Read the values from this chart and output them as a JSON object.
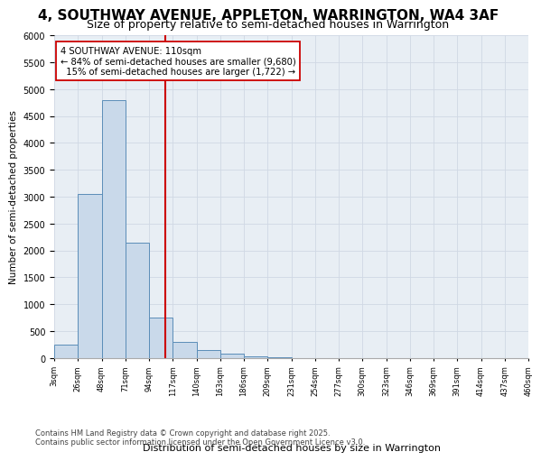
{
  "title1": "4, SOUTHWAY AVENUE, APPLETON, WARRINGTON, WA4 3AF",
  "title2": "Size of property relative to semi-detached houses in Warrington",
  "xlabel": "Distribution of semi-detached houses by size in Warrington",
  "ylabel": "Number of semi-detached properties",
  "bins": [
    "3sqm",
    "26sqm",
    "48sqm",
    "71sqm",
    "94sqm",
    "117sqm",
    "140sqm",
    "163sqm",
    "186sqm",
    "209sqm",
    "231sqm",
    "254sqm",
    "277sqm",
    "300sqm",
    "323sqm",
    "346sqm",
    "369sqm",
    "391sqm",
    "414sqm",
    "437sqm",
    "460sqm"
  ],
  "values": [
    250,
    3050,
    4800,
    2150,
    750,
    300,
    150,
    80,
    30,
    5,
    2,
    0,
    0,
    0,
    0,
    0,
    0,
    0,
    0,
    0
  ],
  "bar_color": "#c9d9ea",
  "bar_edge_color": "#5b8db8",
  "vline_color": "#cc0000",
  "vline_pos": 4.696,
  "annotation_text": "4 SOUTHWAY AVENUE: 110sqm\n← 84% of semi-detached houses are smaller (9,680)\n  15% of semi-detached houses are larger (1,722) →",
  "ylim": [
    0,
    6000
  ],
  "yticks": [
    0,
    500,
    1000,
    1500,
    2000,
    2500,
    3000,
    3500,
    4000,
    4500,
    5000,
    5500,
    6000
  ],
  "grid_color": "#d0d8e4",
  "bg_color": "#e8eef4",
  "footnote": "Contains HM Land Registry data © Crown copyright and database right 2025.\nContains public sector information licensed under the Open Government Licence v3.0.",
  "title1_fontsize": 11,
  "title2_fontsize": 9,
  "annot_fontsize": 7.2,
  "footnote_fontsize": 6.0
}
